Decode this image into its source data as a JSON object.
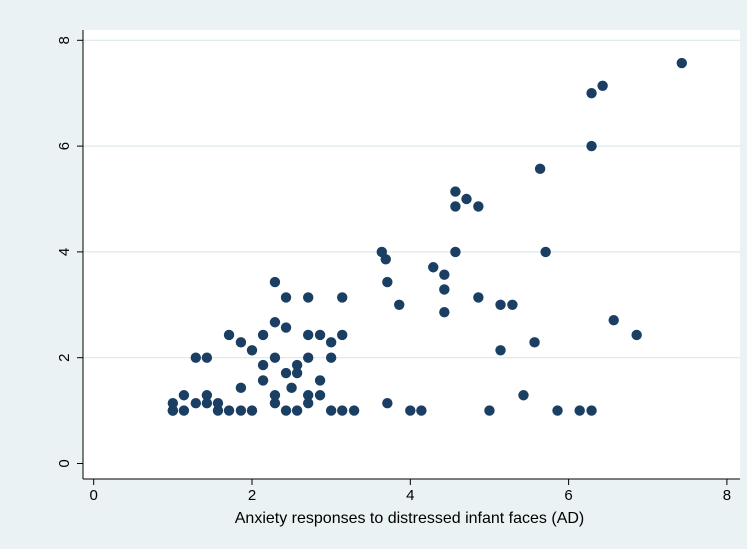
{
  "chart_data": {
    "type": "scatter",
    "title": "",
    "xlabel": "Anxiety responses to distressed infant faces (AD)",
    "ylabel": "",
    "xlim": [
      -0.3,
      8.2
    ],
    "ylim": [
      -0.3,
      8.2
    ],
    "x_ticks": [
      0,
      2,
      4,
      6,
      8
    ],
    "y_ticks": [
      0,
      2,
      4,
      6,
      8
    ],
    "x_tick_labels": [
      "0",
      "2",
      "4",
      "6",
      "8"
    ],
    "y_tick_labels": [
      "0",
      "2",
      "4",
      "6",
      "8"
    ],
    "grid": "horizontal",
    "legend": "none",
    "colors": {
      "background": "#eaf2f3",
      "plot_area": "#ffffff",
      "gridline": "#dde7ea",
      "marker": "#1b3f63",
      "axis": "#000000"
    },
    "series": [
      {
        "points": [
          [
            1.0,
            1.0
          ],
          [
            1.0,
            1.0
          ],
          [
            1.0,
            1.14
          ],
          [
            1.14,
            1.0
          ],
          [
            1.14,
            1.29
          ],
          [
            1.29,
            1.14
          ],
          [
            1.29,
            2.0
          ],
          [
            1.43,
            2.0
          ],
          [
            1.43,
            1.29
          ],
          [
            1.43,
            1.14
          ],
          [
            1.57,
            1.14
          ],
          [
            1.57,
            1.0
          ],
          [
            1.71,
            1.0
          ],
          [
            1.71,
            2.43
          ],
          [
            1.86,
            2.29
          ],
          [
            1.86,
            1.43
          ],
          [
            1.86,
            1.0
          ],
          [
            2.0,
            1.0
          ],
          [
            2.0,
            2.14
          ],
          [
            2.14,
            2.43
          ],
          [
            2.14,
            1.86
          ],
          [
            2.14,
            1.57
          ],
          [
            2.29,
            3.43
          ],
          [
            2.29,
            2.67
          ],
          [
            2.29,
            2.0
          ],
          [
            2.29,
            1.29
          ],
          [
            2.29,
            1.14
          ],
          [
            2.43,
            1.71
          ],
          [
            2.43,
            1.0
          ],
          [
            2.43,
            3.14
          ],
          [
            2.43,
            2.57
          ],
          [
            2.5,
            1.43
          ],
          [
            2.57,
            1.86
          ],
          [
            2.57,
            1.71
          ],
          [
            2.57,
            1.0
          ],
          [
            2.71,
            3.14
          ],
          [
            2.71,
            2.43
          ],
          [
            2.71,
            2.0
          ],
          [
            2.71,
            1.29
          ],
          [
            2.71,
            1.14
          ],
          [
            2.86,
            2.43
          ],
          [
            2.86,
            1.57
          ],
          [
            2.86,
            1.29
          ],
          [
            3.0,
            2.29
          ],
          [
            3.0,
            2.0
          ],
          [
            3.0,
            1.0
          ],
          [
            3.14,
            3.14
          ],
          [
            3.14,
            2.43
          ],
          [
            3.14,
            1.0
          ],
          [
            3.29,
            1.0
          ],
          [
            3.64,
            4.0
          ],
          [
            3.69,
            3.86
          ],
          [
            3.71,
            3.43
          ],
          [
            3.71,
            1.14
          ],
          [
            3.86,
            3.0
          ],
          [
            4.0,
            1.0
          ],
          [
            4.14,
            1.0
          ],
          [
            4.29,
            3.71
          ],
          [
            4.43,
            3.57
          ],
          [
            4.43,
            3.29
          ],
          [
            4.43,
            2.86
          ],
          [
            4.57,
            5.14
          ],
          [
            4.57,
            4.86
          ],
          [
            4.57,
            4.0
          ],
          [
            4.71,
            5.0
          ],
          [
            4.86,
            4.86
          ],
          [
            4.86,
            3.14
          ],
          [
            5.0,
            1.0
          ],
          [
            5.14,
            3.0
          ],
          [
            5.14,
            2.14
          ],
          [
            5.29,
            3.0
          ],
          [
            5.43,
            1.29
          ],
          [
            5.57,
            2.29
          ],
          [
            5.64,
            5.57
          ],
          [
            5.71,
            4.0
          ],
          [
            5.86,
            1.0
          ],
          [
            6.14,
            1.0
          ],
          [
            6.29,
            7.0
          ],
          [
            6.29,
            6.0
          ],
          [
            6.29,
            1.0
          ],
          [
            6.43,
            7.14
          ],
          [
            6.57,
            2.71
          ],
          [
            6.86,
            2.43
          ],
          [
            7.43,
            7.57
          ]
        ]
      }
    ]
  }
}
